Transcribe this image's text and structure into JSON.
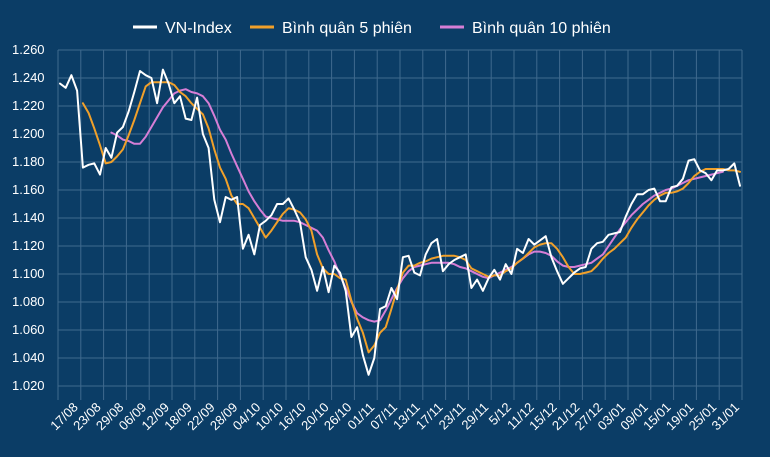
{
  "chart_data": {
    "type": "line",
    "title": "",
    "xlabel": "",
    "ylabel": "",
    "ylim": [
      1010,
      1260
    ],
    "yticks": [
      1020,
      1040,
      1060,
      1080,
      1100,
      1120,
      1140,
      1160,
      1180,
      1200,
      1220,
      1240,
      1260
    ],
    "ytick_labels": [
      "1.020",
      "1.040",
      "1.060",
      "1.080",
      "1.100",
      "1.120",
      "1.140",
      "1.160",
      "1.180",
      "1.200",
      "1.220",
      "1.240",
      "1.260"
    ],
    "x_tick_labels": [
      "17/08",
      "23/08",
      "29/08",
      "06/09",
      "12/09",
      "18/09",
      "22/09",
      "28/09",
      "04/10",
      "10/10",
      "16/10",
      "20/10",
      "26/10",
      "01/11",
      "07/11",
      "13/11",
      "17/11",
      "23/11",
      "29/11",
      "5/12",
      "11/12",
      "15/12",
      "21/12",
      "27/12",
      "03/01",
      "09/01",
      "15/01",
      "19/01",
      "25/01",
      "31/01"
    ],
    "grid": true,
    "legend_position": "top",
    "colors": {
      "background": "#0b3d66",
      "grid": "#3f6a8e",
      "text": "#ffffff"
    },
    "series": [
      {
        "name": "VN-Index",
        "color": "#ffffff",
        "values": [
          1236,
          1233,
          1242,
          1231,
          1176,
          1178,
          1179,
          1171,
          1190,
          1183,
          1201,
          1205,
          1216,
          1230,
          1245,
          1242,
          1240,
          1222,
          1246,
          1236,
          1222,
          1227,
          1211,
          1210,
          1226,
          1200,
          1190,
          1153,
          1137,
          1155,
          1153,
          1155,
          1118,
          1128,
          1114,
          1135,
          1138,
          1142,
          1150,
          1150,
          1154,
          1146,
          1137,
          1112,
          1103,
          1088,
          1105,
          1087,
          1106,
          1101,
          1088,
          1055,
          1062,
          1042,
          1028,
          1040,
          1075,
          1077,
          1090,
          1082,
          1112,
          1113,
          1101,
          1099,
          1114,
          1122,
          1125,
          1102,
          1107,
          1110,
          1112,
          1114,
          1090,
          1096,
          1088,
          1097,
          1103,
          1096,
          1107,
          1100,
          1118,
          1115,
          1125,
          1121,
          1124,
          1127,
          1112,
          1102,
          1093,
          1097,
          1101,
          1104,
          1105,
          1118,
          1122,
          1123,
          1128,
          1129,
          1130,
          1141,
          1150,
          1157,
          1157,
          1160,
          1161,
          1152,
          1152,
          1162,
          1163,
          1168,
          1181,
          1182,
          1174,
          1172,
          1167,
          1174,
          1174,
          1175,
          1179,
          1163
        ]
      },
      {
        "name": "Bình quân 5 phiên",
        "color": "#f0a02a",
        "values": [
          null,
          null,
          null,
          null,
          1222,
          1215,
          1204,
          1192,
          1179,
          1180,
          1184,
          1189,
          1199,
          1210,
          1222,
          1234,
          1237,
          1237,
          1237,
          1237,
          1235,
          1230,
          1227,
          1222,
          1218,
          1214,
          1204,
          1189,
          1176,
          1168,
          1156,
          1150,
          1150,
          1147,
          1140,
          1133,
          1126,
          1131,
          1137,
          1143,
          1147,
          1146,
          1144,
          1139,
          1131,
          1114,
          1104,
          1100,
          1100,
          1097,
          1096,
          1081,
          1068,
          1058,
          1044,
          1049,
          1058,
          1062,
          1075,
          1089,
          1101,
          1106,
          1106,
          1108,
          1109,
          1111,
          1112,
          1113,
          1113,
          1113,
          1112,
          1110,
          1104,
          1102,
          1100,
          1098,
          1099,
          1099,
          1102,
          1104,
          1108,
          1111,
          1115,
          1119,
          1121,
          1122,
          1122,
          1118,
          1112,
          1105,
          1100,
          1100,
          1101,
          1102,
          1106,
          1111,
          1115,
          1118,
          1122,
          1126,
          1133,
          1139,
          1144,
          1149,
          1153,
          1156,
          1158,
          1158,
          1159,
          1161,
          1165,
          1170,
          1173,
          1175,
          1175,
          1175,
          1175,
          1174,
          1174,
          1173
        ]
      },
      {
        "name": "Bình quân 10 phiên",
        "color": "#d67ed6",
        "values": [
          null,
          null,
          null,
          null,
          null,
          null,
          null,
          null,
          null,
          1201,
          1199,
          1196,
          1195,
          1193,
          1193,
          1198,
          1205,
          1212,
          1219,
          1224,
          1229,
          1231,
          1232,
          1230,
          1229,
          1227,
          1222,
          1213,
          1203,
          1196,
          1186,
          1177,
          1168,
          1159,
          1152,
          1146,
          1141,
          1140,
          1139,
          1138,
          1138,
          1138,
          1137,
          1135,
          1133,
          1131,
          1126,
          1117,
          1109,
          1099,
          1090,
          1080,
          1072,
          1069,
          1067,
          1066,
          1067,
          1074,
          1082,
          1090,
          1097,
          1102,
          1105,
          1106,
          1107,
          1108,
          1108,
          1108,
          1108,
          1107,
          1105,
          1104,
          1102,
          1100,
          1098,
          1097,
          1099,
          1101,
          1103,
          1105,
          1108,
          1111,
          1114,
          1116,
          1116,
          1115,
          1113,
          1109,
          1106,
          1105,
          1105,
          1106,
          1107,
          1108,
          1111,
          1114,
          1120,
          1126,
          1132,
          1137,
          1142,
          1146,
          1150,
          1153,
          1156,
          1158,
          1160,
          1161,
          1163,
          1165,
          1167,
          1168,
          1169,
          1170,
          1171,
          1172,
          1173
        ]
      }
    ]
  }
}
